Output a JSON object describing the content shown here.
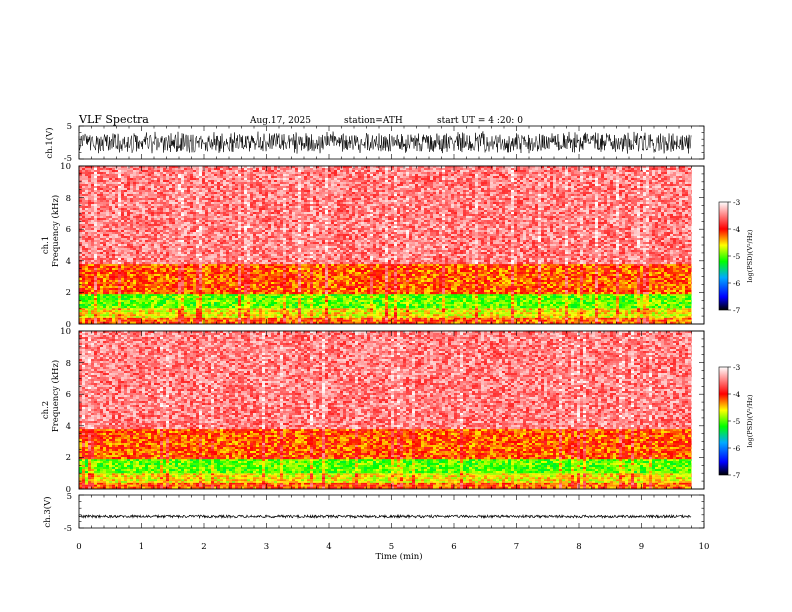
{
  "header": {
    "title": "VLF  Spectra",
    "date": "Aug.17, 2025",
    "station": "station=ATH",
    "start": "start UT =   4 :20: 0"
  },
  "chart_data": [
    {
      "type": "line",
      "panel": "ch1-waveform",
      "ylabel": "ch.1(V)",
      "ylim": [
        -5,
        5
      ],
      "yticks": [
        "5",
        "-5"
      ],
      "xlim": [
        0,
        10
      ],
      "data_end_min": 9.8,
      "amplitude_V": 3.5
    },
    {
      "type": "heatmap",
      "panel": "ch1-spectrogram",
      "ylabel_line1": "ch.1",
      "ylabel_line2": "Frequency (kHz)",
      "ylim": [
        0,
        10
      ],
      "yticks": [
        "0",
        "2",
        "4",
        "6",
        "8",
        "10"
      ],
      "xlim": [
        0,
        10
      ],
      "data_end_min": 9.8,
      "bands_khz": [
        {
          "from": 0,
          "to": 0.4,
          "level": -4.2
        },
        {
          "from": 0.4,
          "to": 1.0,
          "level": -4.6
        },
        {
          "from": 1.0,
          "to": 1.9,
          "level": -5.0
        },
        {
          "from": 1.9,
          "to": 3.8,
          "level": -4.2
        },
        {
          "from": 3.8,
          "to": 10,
          "level": -3.5
        }
      ],
      "colorbar": {
        "ticks": [
          "-3",
          "-4",
          "-5",
          "-6",
          "-7"
        ],
        "label": "log(PSD)(V²/Hz)",
        "range": [
          -7,
          -3
        ],
        "colors": [
          "#000000",
          "#0000ff",
          "#00aaff",
          "#00ff00",
          "#ffff00",
          "#ff0000",
          "#ffffff"
        ]
      }
    },
    {
      "type": "heatmap",
      "panel": "ch2-spectrogram",
      "ylabel_line1": "ch.2",
      "ylabel_line2": "Frequency (kHz)",
      "ylim": [
        0,
        10
      ],
      "yticks": [
        "0",
        "2",
        "4",
        "6",
        "8",
        "10"
      ],
      "xlim": [
        0,
        10
      ],
      "data_end_min": 9.8,
      "bands_khz": [
        {
          "from": 0,
          "to": 0.4,
          "level": -4.2
        },
        {
          "from": 0.4,
          "to": 1.0,
          "level": -4.6
        },
        {
          "from": 1.0,
          "to": 1.9,
          "level": -5.0
        },
        {
          "from": 1.9,
          "to": 3.8,
          "level": -4.2
        },
        {
          "from": 3.8,
          "to": 10,
          "level": -3.5
        }
      ],
      "colorbar": {
        "ticks": [
          "-3",
          "-4",
          "-5",
          "-6",
          "-7"
        ],
        "label": "log(PSD)(V²/Hz)",
        "range": [
          -7,
          -3
        ],
        "colors": [
          "#000000",
          "#0000ff",
          "#00aaff",
          "#00ff00",
          "#ffff00",
          "#ff0000",
          "#ffffff"
        ]
      }
    },
    {
      "type": "line",
      "panel": "ch3-waveform",
      "ylabel": "ch.3(V)",
      "ylim": [
        -5,
        5
      ],
      "yticks": [
        "5",
        "-5"
      ],
      "xlim": [
        0,
        10
      ],
      "data_end_min": 9.8,
      "offset_V": -1.5,
      "amplitude_V": 0.4
    }
  ],
  "xaxis": {
    "label": "Time (min)",
    "ticks": [
      "0",
      "1",
      "2",
      "3",
      "4",
      "5",
      "6",
      "7",
      "8",
      "9",
      "10"
    ]
  }
}
